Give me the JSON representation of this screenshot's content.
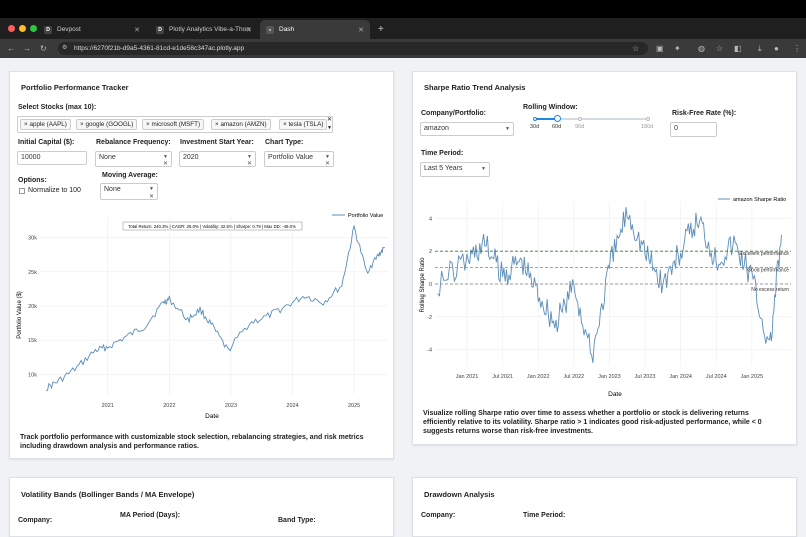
{
  "browser": {
    "tabs": [
      {
        "icon": "D",
        "label": "Devpost"
      },
      {
        "icon": "D",
        "label": "Plotly Analytics Vibe-a-Thon"
      },
      {
        "icon": "D",
        "label": "Dash"
      }
    ],
    "new_tab": "+",
    "url": "https://6270f21b-d9a5-4361-81cd-e1de58c347ac.plotly.app"
  },
  "portfolio": {
    "title": "Portfolio Performance Tracker",
    "stocks_label": "Select Stocks (max 10):",
    "stocks": [
      "apple (AAPL)",
      "google (GOOGL)",
      "microsoft (MSFT)",
      "amazon (AMZN)",
      "tesla (TSLA)"
    ],
    "capital_label": "Initial Capital ($):",
    "capital_value": "10000",
    "rebalance_label": "Rebalance Frequency:",
    "rebalance_value": "None",
    "start_label": "Investment Start Year:",
    "start_value": "2020",
    "chart_type_label": "Chart Type:",
    "chart_type_value": "Portfolio Value",
    "options_label": "Options:",
    "normalize_label": "Normalize to 100",
    "ma_label": "Moving Average:",
    "ma_value": "None",
    "stats": "Total Return: 240.3% | CAGR: 25.0% | Volatility: 32.5% | Sharpe: 0.79 | Max DD: -49.0%",
    "legend": "Portfolio Value",
    "ylabel": "Portfolio Value ($)",
    "xlabel": "Date",
    "yticks": [
      "10k",
      "15k",
      "20k",
      "25k",
      "30k"
    ],
    "xticks": [
      "2021",
      "2022",
      "2023",
      "2024",
      "2025"
    ],
    "note": "Track portfolio performance with customizable stock selection, rebalancing strategies, and risk metrics including drawdown analysis and performance ratios."
  },
  "sharpe": {
    "title": "Sharpe Ratio Trend Analysis",
    "company_label": "Company/Portfolio:",
    "company_value": "amazon",
    "window_label": "Rolling Window:",
    "window_marks": [
      "30d",
      "60d",
      "90d",
      "180d"
    ],
    "rf_label": "Risk-Free Rate (%):",
    "rf_value": "0",
    "period_label": "Time Period:",
    "period_value": "Last 5 Years",
    "legend": "amazon Sharpe Ratio",
    "ylabel": "Rolling Sharpe Ratio",
    "xlabel": "Date",
    "yticks": [
      "-4",
      "-2",
      "0",
      "2",
      "4"
    ],
    "xticks": [
      "Jan 2021",
      "Jul 2021",
      "Jan 2022",
      "Jul 2022",
      "Jan 2023",
      "Jul 2023",
      "Jan 2024",
      "Jul 2024",
      "Jan 2025"
    ],
    "ref_lines": [
      "Excellent performance",
      "Good performance",
      "No excess return"
    ],
    "note": "Visualize rolling Sharpe ratio over time to assess whether a portfolio or stock is delivering returns efficiently relative to its volatility. Sharpe ratio > 1 indicates good risk-adjusted performance, while < 0 suggests returns worse than risk-free investments."
  },
  "volatility": {
    "title": "Volatility Bands (Bollinger Bands / MA Envelope)",
    "company_label": "Company:",
    "ma_period_label": "MA Period (Days):",
    "band_type_label": "Band Type:"
  },
  "drawdown": {
    "title": "Drawdown Analysis",
    "company_label": "Company:",
    "period_label": "Time Period:"
  },
  "chart_data": [
    {
      "type": "line",
      "series": [
        {
          "name": "Portfolio Value",
          "x": [
            2020.0,
            2020.2,
            2020.5,
            2020.8,
            2021.0,
            2021.3,
            2021.6,
            2021.9,
            2022.0,
            2022.3,
            2022.5,
            2022.7,
            2022.95,
            2023.3,
            2023.6,
            2023.9,
            2024.2,
            2024.5,
            2024.8,
            2025.0,
            2025.2,
            2025.4,
            2025.5
          ],
          "y": [
            8000,
            9000,
            11000,
            13500,
            14000,
            15500,
            17000,
            20500,
            21000,
            18000,
            19500,
            17000,
            13500,
            17500,
            18500,
            20000,
            21500,
            20500,
            23000,
            31500,
            25000,
            27500,
            28500
          ]
        }
      ],
      "xlabel": "Date",
      "ylabel": "Portfolio Value ($)",
      "ylim": [
        7000,
        33000
      ]
    },
    {
      "type": "line",
      "series": [
        {
          "name": "amazon Sharpe Ratio",
          "x": [
            "2020-08",
            "2021-01",
            "2021-04",
            "2021-07",
            "2021-10",
            "2022-01",
            "2022-04",
            "2022-07",
            "2022-10",
            "2023-01",
            "2023-04",
            "2023-07",
            "2023-10",
            "2024-01",
            "2024-04",
            "2024-07",
            "2024-10",
            "2025-01",
            "2025-04",
            "2025-06"
          ],
          "y": [
            0,
            1.5,
            2.5,
            0.5,
            1.5,
            -0.5,
            -2.5,
            0,
            -4.5,
            1,
            4.5,
            2,
            0,
            2,
            4,
            1.5,
            2.5,
            0.5,
            -4,
            3
          ]
        }
      ],
      "hlines": [
        {
          "y": 2,
          "label": "Excellent performance"
        },
        {
          "y": 1,
          "label": "Good performance"
        },
        {
          "y": 0,
          "label": "No excess return"
        }
      ],
      "xlabel": "Date",
      "ylabel": "Rolling Sharpe Ratio",
      "ylim": [
        -5,
        5
      ]
    }
  ]
}
